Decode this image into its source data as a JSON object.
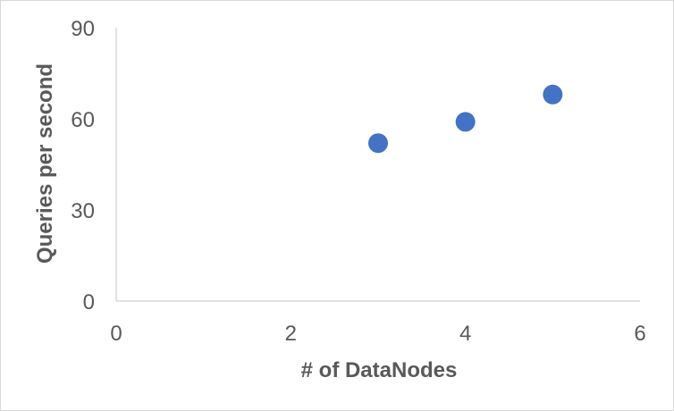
{
  "chart_data": {
    "type": "scatter",
    "title": "",
    "xlabel": "# of DataNodes",
    "ylabel": "Queries per second",
    "xlim": [
      0,
      6
    ],
    "ylim": [
      0,
      90
    ],
    "xticks": [
      "0",
      "2",
      "4",
      "6"
    ],
    "xtick_values": [
      0,
      2,
      4,
      6
    ],
    "yticks": [
      "0",
      "30",
      "60",
      "90"
    ],
    "ytick_values": [
      0,
      30,
      60,
      90
    ],
    "grid": false,
    "legend": "none",
    "series": [
      {
        "x": [
          3,
          4,
          5
        ],
        "y": [
          52,
          59,
          68
        ],
        "color": "#4472c4"
      }
    ],
    "axis_color": "#d9d9d9",
    "text_color": "#595959"
  }
}
